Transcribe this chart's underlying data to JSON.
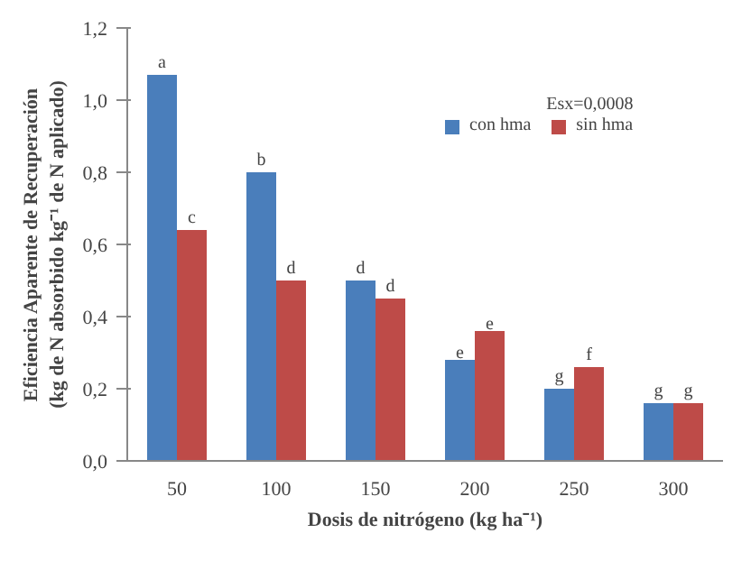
{
  "chart_data": {
    "type": "bar",
    "xlabel": "Dosis de nitrógeno (kg ha⁻¹)",
    "ylabel": "Eficiencia Aparente de Recuperación\n(kg de N absorbido kg⁻¹ de N aplicado)",
    "categories": [
      "50",
      "100",
      "150",
      "200",
      "250",
      "300"
    ],
    "series": [
      {
        "name": "con hma",
        "color": "#4a7ebb",
        "values": [
          1.07,
          0.8,
          0.5,
          0.28,
          0.2,
          0.16
        ]
      },
      {
        "name": "sin hma",
        "color": "#be4b48",
        "values": [
          0.64,
          0.5,
          0.45,
          0.36,
          0.26,
          0.16
        ]
      }
    ],
    "ylim": [
      0,
      1.2
    ],
    "yticks": [
      {
        "value": 0,
        "label": "0,0"
      },
      {
        "value": 0.2,
        "label": "0,2"
      },
      {
        "value": 0.4,
        "label": "0,4"
      },
      {
        "value": 0.6,
        "label": "0,6"
      },
      {
        "value": 0.8,
        "label": "0,8"
      },
      {
        "value": 1.0,
        "label": "1,0"
      },
      {
        "value": 1.2,
        "label": "1,2"
      }
    ],
    "grid": false,
    "legend": "top right",
    "annotations": [
      "Esx=0,0008",
      {
        "text": "a",
        "x": "50",
        "y": 1.07
      },
      {
        "text": "c",
        "x": "50",
        "y": 0.64
      },
      {
        "text": "b",
        "x": "100",
        "y": 0.8
      },
      {
        "text": "d",
        "x": "100",
        "y": 0.5
      },
      {
        "text": "d",
        "x": "150",
        "y": 0.5
      },
      {
        "text": "d",
        "x": "150",
        "y": 0.45
      },
      {
        "text": "e",
        "x": "200",
        "y": 0.28
      },
      {
        "text": "e",
        "x": "200",
        "y": 0.36
      },
      {
        "text": "g",
        "x": "250",
        "y": 0.2
      },
      {
        "text": "f",
        "x": "250",
        "y": 0.26
      },
      {
        "text": "g",
        "x": "300",
        "y": 0.16
      },
      {
        "text": "g",
        "x": "300",
        "y": 0.16
      }
    ]
  }
}
